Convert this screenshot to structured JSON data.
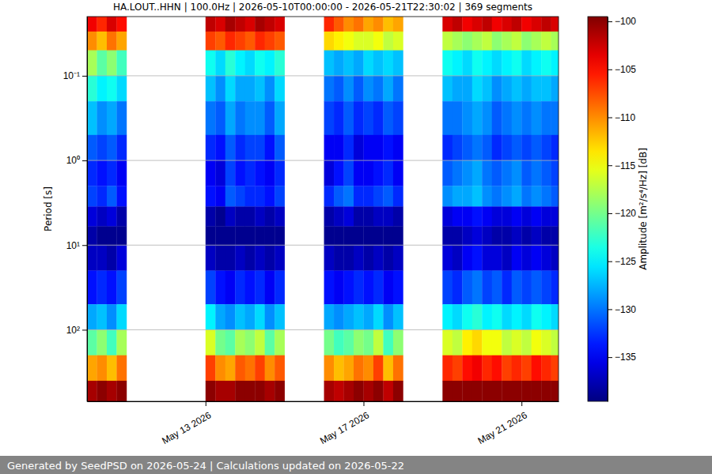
{
  "chart_data": {
    "type": "heatmap",
    "title": "HA.LOUT..HHN | 100.0Hz | 2026-05-10T00:00:00 - 2026-05-21T22:30:02 | 369 segments",
    "y_label": "Period [s]",
    "colorbar_label": "Amplitude [m²/s⁴/Hz] [dB]",
    "footer": "Generated by SeedPSD on 2026-05-24 | Calculations updated on 2026-05-22",
    "log": "y",
    "grid": true,
    "xlim": [
      "2026-05-10T00:00:00",
      "2026-05-21T22:30:02"
    ],
    "xticks": [
      {
        "value": "2026-05-13T00:00:00",
        "label": "May 13 2026"
      },
      {
        "value": "2026-05-17T00:00:00",
        "label": "May 17 2026"
      },
      {
        "value": "2026-05-21T00:00:00",
        "label": "May 21 2026"
      }
    ],
    "ylim": [
      0.02,
      700
    ],
    "yticks": [
      {
        "value": 0.1,
        "label": "10⁻¹"
      },
      {
        "value": 1,
        "label": "10⁰"
      },
      {
        "value": 10,
        "label": "10¹"
      },
      {
        "value": 100,
        "label": "10²"
      }
    ],
    "clim": [
      -139.6,
      -99.5
    ],
    "cticks": [
      {
        "value": -100,
        "label": "−100"
      },
      {
        "value": -105,
        "label": "−105"
      },
      {
        "value": -110,
        "label": "−110"
      },
      {
        "value": -115,
        "label": "−115"
      },
      {
        "value": -120,
        "label": "−120"
      },
      {
        "value": -125,
        "label": "−125"
      },
      {
        "value": -130,
        "label": "−130"
      },
      {
        "value": -135,
        "label": "−135"
      }
    ],
    "cell_duration_hours": 6,
    "y_bins": [
      0.02,
      0.03,
      0.05,
      0.1,
      0.2,
      0.5,
      1,
      2,
      3.5,
      6,
      10,
      20,
      50,
      100,
      200,
      400,
      700
    ],
    "x": [
      "2026-05-10T00:00:00",
      "2026-05-10T06:00:00",
      "2026-05-10T12:00:00",
      "2026-05-10T18:00:00",
      "2026-05-13T00:00:00",
      "2026-05-13T06:00:00",
      "2026-05-13T12:00:00",
      "2026-05-13T18:00:00",
      "2026-05-14T00:00:00",
      "2026-05-14T06:00:00",
      "2026-05-14T12:00:00",
      "2026-05-14T18:00:00",
      "2026-05-16T00:00:00",
      "2026-05-16T06:00:00",
      "2026-05-16T12:00:00",
      "2026-05-16T18:00:00",
      "2026-05-17T00:00:00",
      "2026-05-17T06:00:00",
      "2026-05-17T12:00:00",
      "2026-05-17T18:00:00",
      "2026-05-19T00:00:00",
      "2026-05-19T06:00:00",
      "2026-05-19T12:00:00",
      "2026-05-19T18:00:00",
      "2026-05-20T00:00:00",
      "2026-05-20T06:00:00",
      "2026-05-20T12:00:00",
      "2026-05-20T18:00:00",
      "2026-05-21T00:00:00",
      "2026-05-21T06:00:00",
      "2026-05-21T12:00:00",
      "2026-05-21T18:00:00"
    ],
    "cells": [
      [
        -104,
        -110,
        -118,
        -123,
        -127,
        -131,
        -133,
        -132,
        -136,
        -138,
        -137,
        -134,
        -128,
        -121,
        -111,
        -101
      ],
      [
        -106,
        -112,
        -121,
        -125,
        -129,
        -132,
        -134,
        -133,
        -137,
        -139,
        -137,
        -133,
        -127,
        -119,
        -110,
        -100
      ],
      [
        -103,
        -109,
        -119,
        -124,
        -128,
        -131,
        -133,
        -131,
        -136,
        -139,
        -138,
        -134,
        -129,
        -122,
        -112,
        -101
      ],
      [
        -105,
        -111,
        -122,
        -126,
        -130,
        -133,
        -135,
        -134,
        -138,
        -139,
        -136,
        -132,
        -126,
        -118,
        -109,
        -100
      ],
      [
        -102,
        -107,
        -124,
        -127,
        -130,
        -133,
        -135,
        -134,
        -138,
        -139,
        -137,
        -132,
        -125,
        -116,
        -107,
        -100
      ],
      [
        -103,
        -108,
        -126,
        -129,
        -131,
        -134,
        -136,
        -135,
        -139,
        -139,
        -138,
        -134,
        -128,
        -120,
        -110,
        -101
      ],
      [
        -101,
        -106,
        -123,
        -126,
        -128,
        -131,
        -132,
        -131,
        -137,
        -139,
        -138,
        -135,
        -129,
        -121,
        -111,
        -101
      ],
      [
        -102,
        -107,
        -125,
        -128,
        -130,
        -133,
        -134,
        -132,
        -138,
        -139,
        -137,
        -133,
        -127,
        -118,
        -108,
        -100
      ],
      [
        -103,
        -108,
        -126,
        -128,
        -129,
        -132,
        -133,
        -133,
        -138,
        -139,
        -138,
        -134,
        -128,
        -119,
        -109,
        -100
      ],
      [
        -101,
        -106,
        -124,
        -127,
        -129,
        -132,
        -134,
        -133,
        -137,
        -139,
        -137,
        -133,
        -126,
        -117,
        -107,
        -100
      ],
      [
        -102,
        -107,
        -125,
        -129,
        -131,
        -134,
        -135,
        -134,
        -138,
        -139,
        -138,
        -135,
        -129,
        -121,
        -110,
        -101
      ],
      [
        -103,
        -108,
        -123,
        -126,
        -128,
        -131,
        -133,
        -132,
        -137,
        -139,
        -137,
        -133,
        -127,
        -118,
        -108,
        -100
      ],
      [
        -106,
        -113,
        -127,
        -130,
        -132,
        -135,
        -136,
        -133,
        -138,
        -139,
        -137,
        -134,
        -128,
        -120,
        -110,
        -101
      ],
      [
        -108,
        -114,
        -128,
        -131,
        -133,
        -135,
        -134,
        -131,
        -137,
        -139,
        -138,
        -135,
        -129,
        -122,
        -112,
        -102
      ],
      [
        -110,
        -115,
        -127,
        -129,
        -131,
        -133,
        -132,
        -130,
        -136,
        -139,
        -138,
        -134,
        -128,
        -121,
        -111,
        -101
      ],
      [
        -109,
        -116,
        -128,
        -131,
        -133,
        -136,
        -135,
        -133,
        -138,
        -139,
        -137,
        -133,
        -127,
        -119,
        -109,
        -100
      ],
      [
        -111,
        -116,
        -126,
        -129,
        -132,
        -135,
        -135,
        -133,
        -138,
        -139,
        -138,
        -134,
        -128,
        -120,
        -110,
        -101
      ],
      [
        -110,
        -115,
        -127,
        -130,
        -133,
        -135,
        -134,
        -132,
        -137,
        -139,
        -137,
        -133,
        -126,
        -117,
        -107,
        -100
      ],
      [
        -112,
        -117,
        -126,
        -128,
        -131,
        -134,
        -133,
        -131,
        -137,
        -139,
        -138,
        -135,
        -129,
        -122,
        -112,
        -102
      ],
      [
        -111,
        -116,
        -127,
        -130,
        -132,
        -135,
        -135,
        -133,
        -138,
        -139,
        -137,
        -134,
        -127,
        -119,
        -109,
        -100
      ],
      [
        -103,
        -117,
        -124,
        -127,
        -130,
        -133,
        -131,
        -129,
        -136,
        -138,
        -136,
        -132,
        -125,
        -116,
        -106,
        -100
      ],
      [
        -102,
        -118,
        -125,
        -128,
        -130,
        -132,
        -130,
        -128,
        -135,
        -138,
        -137,
        -133,
        -126,
        -117,
        -107,
        -100
      ],
      [
        -104,
        -119,
        -126,
        -128,
        -129,
        -131,
        -129,
        -128,
        -135,
        -137,
        -135,
        -131,
        -124,
        -114,
        -105,
        -100
      ],
      [
        -103,
        -118,
        -124,
        -126,
        -128,
        -130,
        -128,
        -127,
        -134,
        -136,
        -134,
        -130,
        -123,
        -113,
        -104,
        -100
      ],
      [
        -102,
        -117,
        -125,
        -127,
        -129,
        -131,
        -130,
        -129,
        -135,
        -137,
        -136,
        -132,
        -125,
        -115,
        -106,
        -100
      ],
      [
        -104,
        -119,
        -126,
        -129,
        -131,
        -133,
        -131,
        -130,
        -136,
        -138,
        -136,
        -131,
        -124,
        -115,
        -105,
        -100
      ],
      [
        -103,
        -118,
        -125,
        -128,
        -130,
        -132,
        -130,
        -129,
        -136,
        -138,
        -137,
        -133,
        -126,
        -117,
        -107,
        -100
      ],
      [
        -102,
        -117,
        -124,
        -127,
        -129,
        -131,
        -129,
        -128,
        -135,
        -137,
        -135,
        -131,
        -125,
        -116,
        -106,
        -100
      ],
      [
        -104,
        -119,
        -126,
        -128,
        -130,
        -132,
        -131,
        -130,
        -136,
        -138,
        -136,
        -132,
        -126,
        -117,
        -107,
        -100
      ],
      [
        -103,
        -118,
        -125,
        -127,
        -129,
        -131,
        -130,
        -129,
        -135,
        -137,
        -135,
        -131,
        -124,
        -115,
        -105,
        -100
      ],
      [
        -102,
        -117,
        -124,
        -127,
        -130,
        -132,
        -131,
        -130,
        -136,
        -138,
        -136,
        -132,
        -125,
        -116,
        -106,
        -100
      ],
      [
        -103,
        -118,
        -125,
        -128,
        -130,
        -133,
        -132,
        -131,
        -136,
        -138,
        -137,
        -133,
        -126,
        -117,
        -107,
        -100
      ]
    ]
  }
}
